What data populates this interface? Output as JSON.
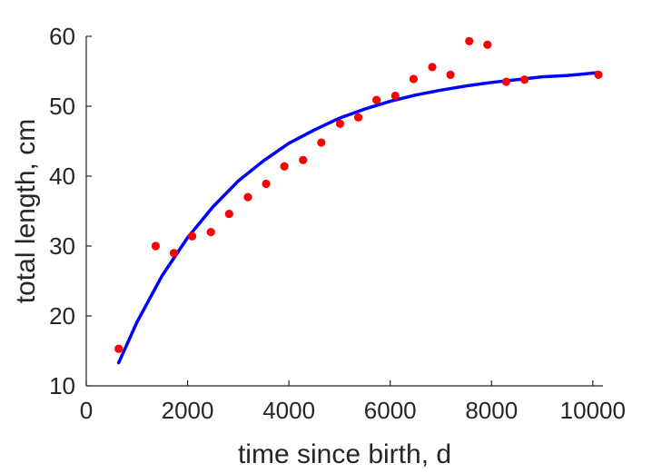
{
  "chart_data": {
    "type": "scatter",
    "title": "",
    "xlabel": "time since birth, d",
    "ylabel": "total length, cm",
    "xlim": [
      0,
      10200
    ],
    "ylim": [
      10,
      60
    ],
    "xticks": [
      0,
      2000,
      4000,
      6000,
      8000,
      10000
    ],
    "yticks": [
      10,
      20,
      30,
      40,
      50,
      60
    ],
    "grid": false,
    "colors": {
      "points": "#ff0000",
      "curve": "#0000ff",
      "axis": "#262626"
    },
    "series": [
      {
        "type": "scatter",
        "x": [
          640,
          1370,
          1730,
          2090,
          2460,
          2820,
          3190,
          3550,
          3910,
          4280,
          4640,
          5010,
          5370,
          5730,
          6100,
          6460,
          6830,
          7190,
          7560,
          7920,
          8290,
          8650,
          10110
        ],
        "y": [
          15.3,
          30.0,
          29.0,
          31.4,
          32.0,
          34.6,
          37.0,
          38.9,
          41.4,
          42.3,
          44.8,
          47.5,
          48.4,
          50.9,
          51.5,
          53.9,
          55.6,
          54.5,
          59.3,
          58.8,
          53.5,
          53.8,
          54.5
        ]
      },
      {
        "type": "line",
        "x": [
          640,
          1000,
          1500,
          2000,
          2500,
          3000,
          3500,
          4000,
          4500,
          5000,
          5500,
          6000,
          6500,
          7000,
          7500,
          8000,
          8500,
          9000,
          9500,
          10100
        ],
        "y": [
          13.3,
          19.1,
          25.8,
          31.2,
          35.6,
          39.3,
          42.2,
          44.7,
          46.6,
          48.3,
          49.6,
          50.7,
          51.6,
          52.3,
          52.9,
          53.4,
          53.8,
          54.2,
          54.4,
          54.8
        ]
      }
    ]
  }
}
